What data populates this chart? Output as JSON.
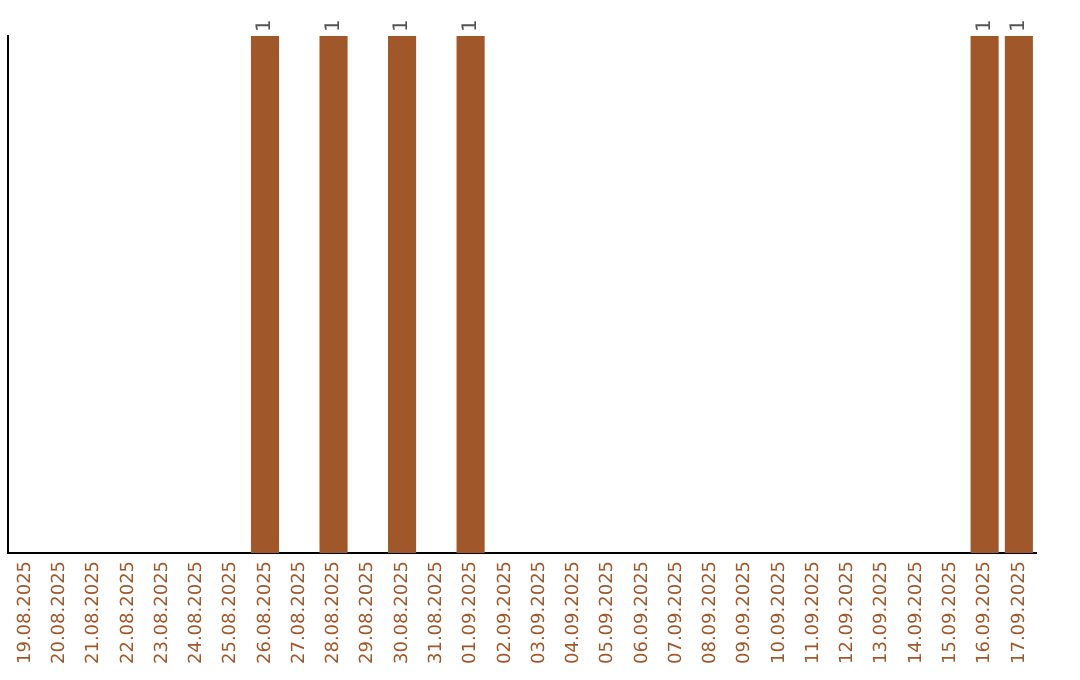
{
  "chart_data": {
    "type": "bar",
    "categories": [
      "19.08.2025",
      "20.08.2025",
      "21.08.2025",
      "22.08.2025",
      "23.08.2025",
      "24.08.2025",
      "25.08.2025",
      "26.08.2025",
      "27.08.2025",
      "28.08.2025",
      "29.08.2025",
      "30.08.2025",
      "31.08.2025",
      "01.09.2025",
      "02.09.2025",
      "03.09.2025",
      "04.09.2025",
      "05.09.2025",
      "06.09.2025",
      "07.09.2025",
      "08.09.2025",
      "09.09.2025",
      "10.09.2025",
      "11.09.2025",
      "12.09.2025",
      "13.09.2025",
      "14.09.2025",
      "15.09.2025",
      "16.09.2025",
      "17.09.2025"
    ],
    "values": [
      0,
      0,
      0,
      0,
      0,
      0,
      0,
      1,
      0,
      1,
      0,
      1,
      0,
      1,
      0,
      0,
      0,
      0,
      0,
      0,
      0,
      0,
      0,
      0,
      0,
      0,
      0,
      0,
      1,
      1
    ],
    "value_labels": [
      null,
      null,
      null,
      null,
      null,
      null,
      null,
      "1",
      null,
      "1",
      null,
      "1",
      null,
      "1",
      null,
      null,
      null,
      null,
      null,
      null,
      null,
      null,
      null,
      null,
      null,
      null,
      null,
      null,
      "1",
      "1"
    ],
    "color": "#a0582a",
    "grid": false,
    "legend": false
  }
}
